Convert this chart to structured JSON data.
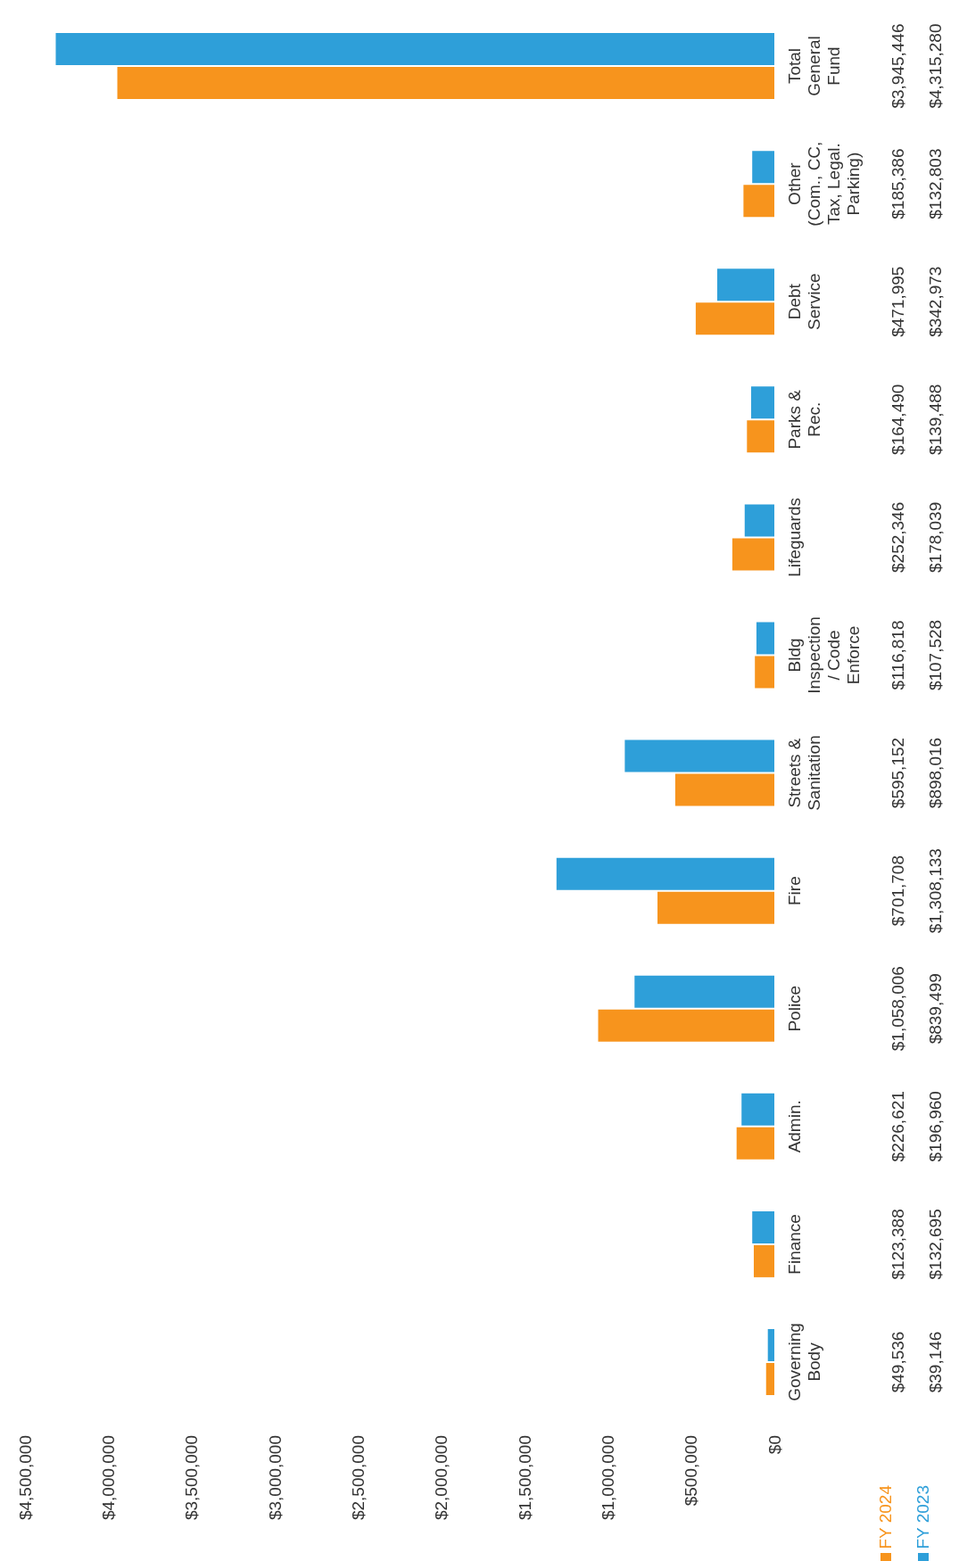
{
  "chart_data": {
    "type": "bar",
    "orientation": "horizontal",
    "categories": [
      "Total General Fund",
      "Other (Com., CC, Tax, Legal. Parking)",
      "Debt Service",
      "Parks & Rec.",
      "Lifeguards",
      "Bldg Inspection / Code Enforce",
      "Streets & Sanitation",
      "Fire",
      "Police",
      "Admin.",
      "Finance",
      "Governing Body"
    ],
    "series": [
      {
        "name": "FY 2024",
        "color": "#f7941d",
        "values": [
          3945446,
          185386,
          471995,
          164490,
          252346,
          116818,
          595152,
          701708,
          1058006,
          226621,
          123388,
          49536
        ],
        "value_labels": [
          "$3,945,446",
          "$185,386",
          "$471,995",
          "$164,490",
          "$252,346",
          "$116,818",
          "$595,152",
          "$701,708",
          "$1,058,006",
          "$226,621",
          "$123,388",
          "$49,536"
        ]
      },
      {
        "name": "FY 2023",
        "color": "#2e9fd9",
        "values": [
          4315280,
          132803,
          342973,
          139488,
          178039,
          107528,
          898016,
          1308133,
          839499,
          196960,
          132695,
          39146
        ],
        "value_labels": [
          "$4,315,280",
          "$132,803",
          "$342,973",
          "$139,488",
          "$178,039",
          "$107,528",
          "$898,016",
          "$1,308,133",
          "$839,499",
          "$196,960",
          "$132,695",
          "$39,146"
        ]
      }
    ],
    "xlim": [
      4500000,
      0
    ],
    "xticks": [
      {
        "value": 4500000,
        "label": "$4,500,000"
      },
      {
        "value": 4000000,
        "label": "$4,000,000"
      },
      {
        "value": 3500000,
        "label": "$3,500,000"
      },
      {
        "value": 3000000,
        "label": "$3,000,000"
      },
      {
        "value": 2500000,
        "label": "$2,500,000"
      },
      {
        "value": 2000000,
        "label": "$2,000,000"
      },
      {
        "value": 1500000,
        "label": "$1,500,000"
      },
      {
        "value": 1000000,
        "label": "$1,000,000"
      },
      {
        "value": 500000,
        "label": "$500,000"
      },
      {
        "value": 0,
        "label": "$0"
      }
    ],
    "legend": "bottom right"
  }
}
